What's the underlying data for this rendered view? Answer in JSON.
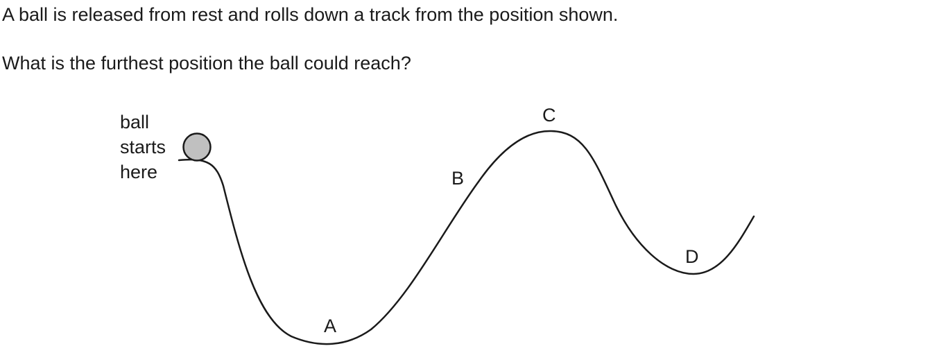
{
  "question": {
    "line1": "A ball is released from rest and rolls down a track from the position shown.",
    "line2": "What is the furthest position the ball could reach?"
  },
  "diagram": {
    "start_label": [
      "ball",
      "starts",
      "here"
    ],
    "points": {
      "A": "A",
      "B": "B",
      "C": "C",
      "D": "D"
    },
    "colors": {
      "track": "#1a1a1a",
      "ball_fill": "#c0c0c0",
      "ball_stroke": "#1a1a1a"
    }
  }
}
